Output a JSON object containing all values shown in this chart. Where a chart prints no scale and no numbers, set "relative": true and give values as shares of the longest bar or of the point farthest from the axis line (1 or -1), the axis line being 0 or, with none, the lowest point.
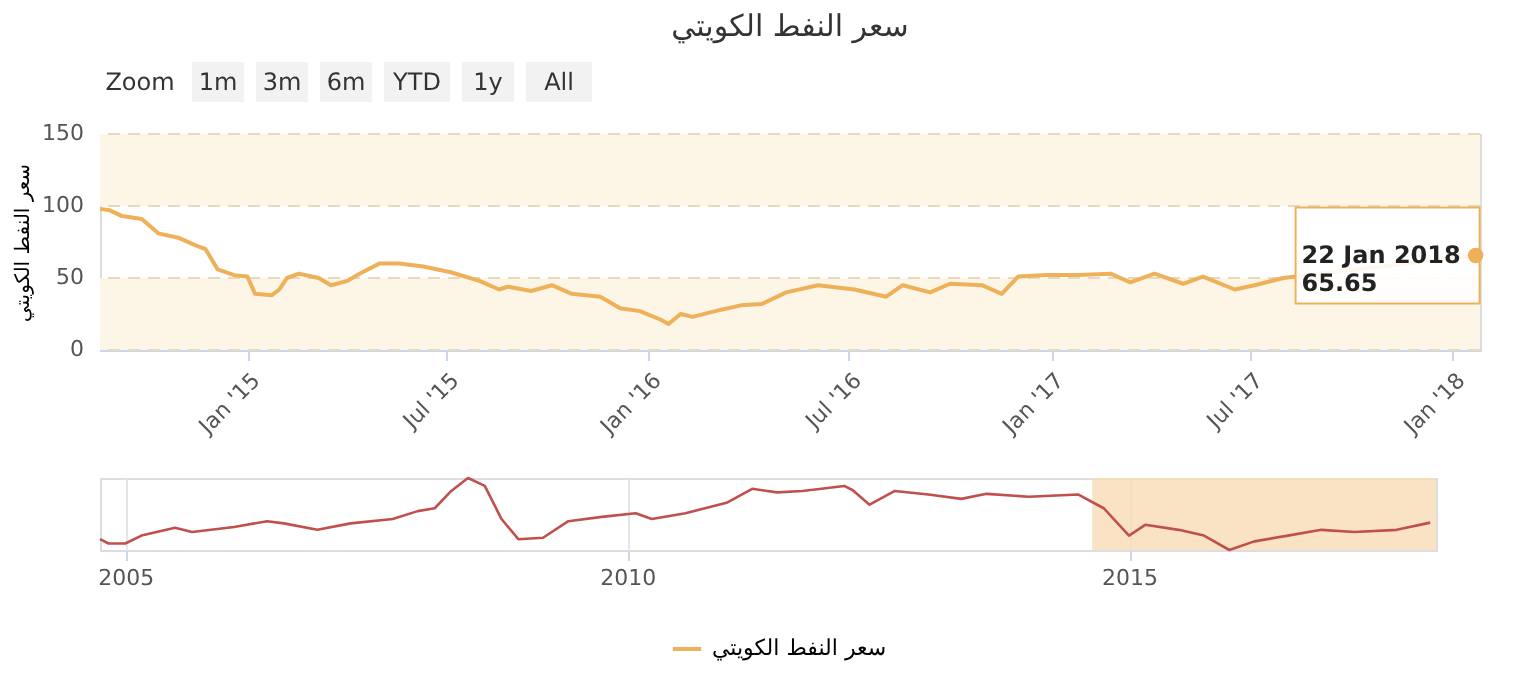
{
  "chart_data": [
    {
      "type": "line",
      "title": "سعر النفط الكويتي",
      "ylabel": "سعر النفط الكويتي",
      "legend": "bottom",
      "grid": "y",
      "marker": "none",
      "line_style": "solid",
      "annotations": [
        "Zoom",
        "1m",
        "3m",
        "6m",
        "YTD",
        "1y",
        "All",
        {
          "text": "22 Jan 2018\n65.65",
          "x": "2018-01-22",
          "y": 65.65
        }
      ],
      "xlim": [
        "2014-08-20",
        "2018-01-26"
      ],
      "xticks": [
        {
          "value": "2015-01-01",
          "label": "Jan '15"
        },
        {
          "value": "2015-07-01",
          "label": "Jul '15"
        },
        {
          "value": "2016-01-01",
          "label": "Jan '16"
        },
        {
          "value": "2016-07-01",
          "label": "Jul '16"
        },
        {
          "value": "2017-01-01",
          "label": "Jan '17"
        },
        {
          "value": "2017-07-01",
          "label": "Jul '17"
        },
        {
          "value": "2018-01-01",
          "label": "Jan '18"
        }
      ],
      "ylim": [
        0,
        150
      ],
      "yticks": [
        0,
        50,
        100,
        150
      ],
      "bands": [
        {
          "axis": "y",
          "from": 0,
          "to": 50,
          "color": "#fdf5e6"
        },
        {
          "axis": "y",
          "from": 100,
          "to": 150,
          "color": "#fdf5e6"
        }
      ],
      "series": [
        {
          "name": "سعر النفط الكويتي",
          "color": "#eeb15a",
          "x": [
            "2014-08-20",
            "2014-08-29",
            "2014-09-09",
            "2014-09-27",
            "2014-10-12",
            "2014-10-30",
            "2014-11-14",
            "2014-11-24",
            "2014-12-05",
            "2014-12-20",
            "2015-01-01",
            "2015-01-08",
            "2015-01-23",
            "2015-01-30",
            "2015-02-06",
            "2015-02-17",
            "2015-03-07",
            "2015-03-18",
            "2015-04-02",
            "2015-04-13",
            "2015-05-01",
            "2015-05-19",
            "2015-06-10",
            "2015-07-05",
            "2015-07-31",
            "2015-08-18",
            "2015-08-26",
            "2015-09-16",
            "2015-10-05",
            "2015-10-23",
            "2015-11-18",
            "2015-12-06",
            "2015-12-24",
            "2016-01-12",
            "2016-01-19",
            "2016-01-30",
            "2016-02-10",
            "2016-03-07",
            "2016-03-25",
            "2016-04-13",
            "2016-05-05",
            "2016-06-03",
            "2016-07-06",
            "2016-08-04",
            "2016-08-19",
            "2016-09-13",
            "2016-10-01",
            "2016-10-30",
            "2016-11-17",
            "2016-12-02",
            "2016-12-28",
            "2017-01-26",
            "2017-02-24",
            "2017-03-14",
            "2017-04-05",
            "2017-05-01",
            "2017-05-19",
            "2017-06-17",
            "2017-07-05",
            "2017-07-31",
            "2018-01-22"
          ],
          "values": [
            98,
            97,
            93,
            91,
            81,
            78,
            73,
            70,
            56,
            52,
            51,
            39,
            38,
            42,
            50,
            53,
            50,
            45,
            48,
            53,
            60,
            60,
            58,
            54,
            48,
            42,
            44,
            41,
            45,
            39,
            37,
            29,
            27,
            21,
            18,
            25,
            23,
            28,
            31,
            32,
            40,
            45,
            42,
            37,
            45,
            40,
            46,
            45,
            39,
            51,
            52,
            52,
            53,
            47,
            53,
            46,
            51,
            42,
            45,
            50,
            65.65
          ]
        }
      ]
    },
    {
      "type": "line",
      "relative": true,
      "grid": "x",
      "marker": "none",
      "line_style": "solid",
      "legend": false,
      "xlim": [
        "2004-10-01",
        "2018-01-22"
      ],
      "xticks": [
        "2005",
        "2010",
        "2015"
      ],
      "bands": [
        {
          "axis": "x",
          "from": "2014-08-20",
          "to": "2018-01-22",
          "color": "#f7dcb5"
        }
      ],
      "series": [
        {
          "color": "#c0504d",
          "x": [
            "2004-10",
            "2004-11",
            "2005-01",
            "2005-03",
            "2005-07",
            "2005-09",
            "2006-02",
            "2006-06",
            "2006-08",
            "2006-12",
            "2007-04",
            "2007-09",
            "2007-12",
            "2008-02",
            "2008-04",
            "2008-06",
            "2008-08",
            "2008-10",
            "2008-12",
            "2009-03",
            "2009-06",
            "2009-10",
            "2010-02",
            "2010-04",
            "2010-08",
            "2011-01",
            "2011-04",
            "2011-07",
            "2011-10",
            "2012-03",
            "2012-04",
            "2012-06",
            "2012-09",
            "2013-01",
            "2013-05",
            "2013-08",
            "2014-01",
            "2014-07",
            "2014-10",
            "2015-01",
            "2015-03",
            "2015-07",
            "2015-10",
            "2016-01",
            "2016-04",
            "2016-08",
            "2016-12",
            "2017-04",
            "2017-09",
            "2018-01"
          ],
          "values": [
            0.15,
            0.09,
            0.09,
            0.2,
            0.31,
            0.25,
            0.32,
            0.4,
            0.37,
            0.28,
            0.37,
            0.43,
            0.54,
            0.58,
            0.82,
            1,
            0.89,
            0.43,
            0.15,
            0.17,
            0.4,
            0.46,
            0.51,
            0.43,
            0.51,
            0.66,
            0.85,
            0.8,
            0.82,
            0.89,
            0.83,
            0.63,
            0.82,
            0.77,
            0.71,
            0.78,
            0.74,
            0.77,
            0.58,
            0.2,
            0.35,
            0.28,
            0.2,
            0,
            0.12,
            0.2,
            0.28,
            0.25,
            0.28,
            0.38
          ]
        }
      ]
    }
  ]
}
